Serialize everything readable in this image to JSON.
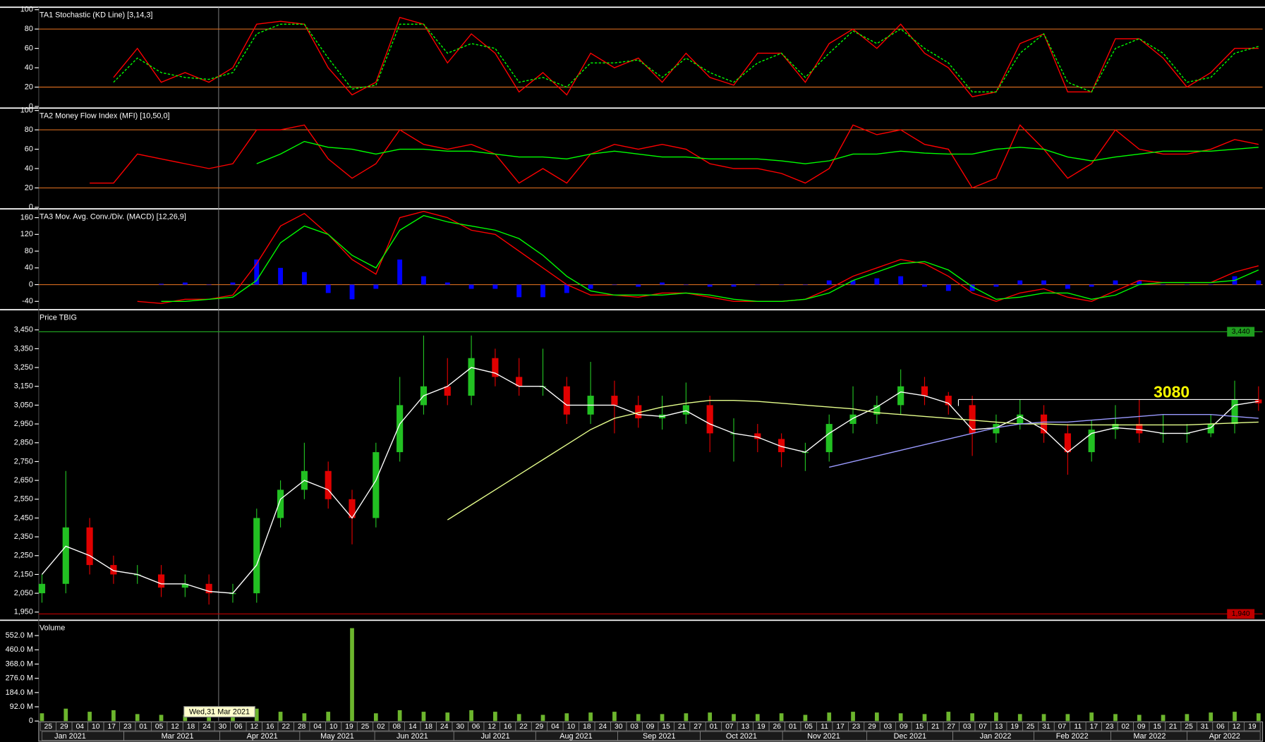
{
  "chart_data": [
    {
      "type": "line",
      "title": "TA1 Stochastic (KD Line) [3,14,3]",
      "ylim": [
        0,
        100
      ],
      "yticks": [
        0,
        20,
        40,
        60,
        80,
        100
      ],
      "guides": [
        80,
        20
      ],
      "guide_color": "#d2691e",
      "series": [
        {
          "color": "#ff0000",
          "values": [
            null,
            null,
            null,
            30,
            60,
            25,
            35,
            25,
            40,
            85,
            88,
            85,
            40,
            12,
            25,
            92,
            85,
            45,
            75,
            55,
            15,
            35,
            12,
            55,
            40,
            50,
            25,
            55,
            30,
            22,
            55,
            55,
            25,
            65,
            80,
            60,
            85,
            55,
            40,
            10,
            15,
            65,
            75,
            15,
            15,
            70,
            70,
            50,
            20,
            35,
            60,
            60
          ]
        },
        {
          "color": "#00ff00",
          "dash": true,
          "values": [
            null,
            null,
            null,
            25,
            50,
            35,
            30,
            28,
            35,
            75,
            85,
            85,
            50,
            18,
            22,
            85,
            85,
            55,
            65,
            60,
            25,
            30,
            20,
            45,
            45,
            48,
            30,
            50,
            35,
            25,
            45,
            55,
            30,
            55,
            78,
            65,
            80,
            60,
            45,
            15,
            15,
            55,
            75,
            25,
            15,
            60,
            70,
            55,
            25,
            30,
            55,
            62
          ]
        }
      ]
    },
    {
      "type": "line",
      "title": "TA2 Money Flow Index (MFI) [10,50,0]",
      "ylim": [
        0,
        100
      ],
      "yticks": [
        0,
        20,
        40,
        60,
        80,
        100
      ],
      "guides": [
        80,
        20
      ],
      "guide_color": "#d2691e",
      "series": [
        {
          "color": "#ff0000",
          "values": [
            null,
            null,
            25,
            25,
            55,
            50,
            45,
            40,
            45,
            80,
            80,
            85,
            50,
            30,
            45,
            80,
            65,
            60,
            65,
            55,
            25,
            40,
            25,
            55,
            65,
            60,
            65,
            60,
            45,
            40,
            40,
            35,
            25,
            40,
            85,
            75,
            80,
            65,
            60,
            20,
            30,
            85,
            60,
            30,
            45,
            80,
            60,
            55,
            55,
            60,
            70,
            65
          ]
        },
        {
          "color": "#00ff00",
          "values": [
            null,
            null,
            null,
            null,
            null,
            null,
            null,
            null,
            null,
            45,
            55,
            68,
            62,
            60,
            55,
            60,
            60,
            58,
            58,
            55,
            52,
            52,
            50,
            55,
            58,
            55,
            52,
            52,
            50,
            50,
            50,
            48,
            45,
            48,
            55,
            55,
            58,
            56,
            55,
            55,
            60,
            62,
            60,
            52,
            48,
            52,
            55,
            58,
            58,
            58,
            60,
            62
          ]
        }
      ]
    },
    {
      "type": "combo",
      "title": "TA3 Mov. Avg. Conv./Div. (MACD) [12,26,9]",
      "ylim": [
        -58,
        179
      ],
      "yticks": [
        -40,
        0,
        40,
        80,
        120,
        160
      ],
      "guides": [
        0
      ],
      "guide_color": "#d2691e",
      "series": [
        {
          "type": "bar",
          "color": "#0000ff",
          "values": [
            null,
            null,
            null,
            null,
            null,
            2,
            5,
            0,
            5,
            60,
            40,
            30,
            -20,
            -35,
            -10,
            60,
            20,
            5,
            -10,
            -10,
            -30,
            -30,
            -20,
            -10,
            0,
            -5,
            5,
            0,
            -5,
            -5,
            0,
            0,
            0,
            10,
            10,
            15,
            20,
            -5,
            -15,
            -15,
            -5,
            10,
            10,
            -10,
            -5,
            10,
            10,
            0,
            0,
            0,
            20,
            10
          ]
        },
        {
          "type": "line",
          "color": "#ff0000",
          "values": [
            null,
            null,
            null,
            null,
            -40,
            -45,
            -35,
            -35,
            -25,
            50,
            140,
            170,
            120,
            60,
            25,
            160,
            175,
            160,
            130,
            120,
            80,
            40,
            0,
            -25,
            -25,
            -30,
            -20,
            -20,
            -30,
            -40,
            -40,
            -40,
            -35,
            -10,
            20,
            40,
            60,
            50,
            20,
            -20,
            -40,
            -20,
            -10,
            -30,
            -40,
            -15,
            10,
            5,
            5,
            5,
            30,
            45
          ]
        },
        {
          "type": "line",
          "color": "#00ff00",
          "values": [
            null,
            null,
            null,
            null,
            null,
            -40,
            -40,
            -35,
            -30,
            10,
            100,
            140,
            120,
            70,
            40,
            130,
            165,
            150,
            140,
            130,
            110,
            70,
            20,
            -15,
            -25,
            -25,
            -25,
            -20,
            -25,
            -35,
            -40,
            -40,
            -35,
            -20,
            10,
            30,
            50,
            55,
            35,
            -5,
            -35,
            -30,
            -20,
            -20,
            -35,
            -25,
            0,
            5,
            5,
            5,
            10,
            35
          ]
        }
      ]
    },
    {
      "type": "candlestick",
      "title": "Price TBIG",
      "ylim": [
        1911,
        3553
      ],
      "yticks": [
        {
          "value": 1950,
          "label": "1,950"
        },
        {
          "value": 2050,
          "label": "2,050"
        },
        {
          "value": 2150,
          "label": "2,150"
        },
        {
          "value": 2250,
          "label": "2,250"
        },
        {
          "value": 2350,
          "label": "2,350"
        },
        {
          "value": 2450,
          "label": "2,450"
        },
        {
          "value": 2550,
          "label": "2,550"
        },
        {
          "value": 2650,
          "label": "2,650"
        },
        {
          "value": 2750,
          "label": "2,750"
        },
        {
          "value": 2850,
          "label": "2,850"
        },
        {
          "value": 2950,
          "label": "2,950"
        },
        {
          "value": 3050,
          "label": "3,050"
        },
        {
          "value": 3150,
          "label": "3,150"
        },
        {
          "value": 3250,
          "label": "3,250"
        },
        {
          "value": 3350,
          "label": "3,350"
        },
        {
          "value": 3450,
          "label": "3,450"
        }
      ],
      "up_color": "#22c022",
      "down_color": "#e00000",
      "open": [
        2050,
        2100,
        2400,
        2200,
        2150,
        2150,
        2080,
        2100,
        2050,
        2050,
        2450,
        2600,
        2700,
        2550,
        2450,
        2800,
        3050,
        3150,
        3100,
        3300,
        3200,
        3150,
        3150,
        3000,
        3100,
        3050,
        2980,
        3000,
        3050,
        2900,
        2900,
        2870,
        2800,
        2800,
        2950,
        3000,
        3050,
        3150,
        3100,
        3050,
        2900,
        2950,
        3000,
        2900,
        2800,
        2920,
        2950,
        2900,
        2900,
        2900,
        2950,
        3080
      ],
      "high": [
        2150,
        2700,
        2450,
        2250,
        2200,
        2200,
        2150,
        2150,
        2100,
        2500,
        2650,
        2850,
        2750,
        2600,
        2850,
        3200,
        3420,
        3300,
        3420,
        3350,
        3300,
        3350,
        3200,
        3280,
        3180,
        3100,
        3100,
        3170,
        3100,
        2980,
        2950,
        2900,
        2850,
        3000,
        3150,
        3100,
        3240,
        3200,
        3120,
        3100,
        3000,
        3080,
        3050,
        2950,
        2970,
        3050,
        3080,
        3000,
        2950,
        3000,
        3180,
        3150
      ],
      "low": [
        2000,
        2050,
        2150,
        2100,
        2100,
        2030,
        2030,
        1990,
        2000,
        2000,
        2400,
        2550,
        2500,
        2310,
        2400,
        2750,
        3000,
        3050,
        3050,
        3150,
        3100,
        3100,
        2950,
        2950,
        2900,
        2930,
        2920,
        2950,
        2800,
        2750,
        2800,
        2720,
        2700,
        2750,
        2900,
        2950,
        3000,
        3050,
        3000,
        2780,
        2850,
        2920,
        2850,
        2680,
        2750,
        2870,
        2850,
        2850,
        2850,
        2880,
        2900,
        3020
      ],
      "close": [
        2100,
        2400,
        2200,
        2150,
        2150,
        2080,
        2100,
        2050,
        2050,
        2450,
        2600,
        2700,
        2550,
        2450,
        2800,
        3050,
        3150,
        3100,
        3300,
        3200,
        3150,
        3150,
        3000,
        3100,
        3050,
        2980,
        3000,
        3050,
        2900,
        2900,
        2870,
        2800,
        2800,
        2950,
        3000,
        3050,
        3150,
        3100,
        3050,
        2900,
        2950,
        3000,
        2900,
        2800,
        2920,
        2950,
        2900,
        2900,
        2900,
        2950,
        3080,
        3060
      ],
      "overlays": [
        {
          "color": "#ffffff",
          "values": [
            2150,
            2300,
            2250,
            2170,
            2150,
            2100,
            2100,
            2060,
            2050,
            2200,
            2550,
            2650,
            2600,
            2450,
            2650,
            2950,
            3100,
            3150,
            3250,
            3220,
            3150,
            3150,
            3050,
            3050,
            3050,
            3000,
            2990,
            3020,
            2950,
            2900,
            2880,
            2830,
            2800,
            2900,
            2980,
            3040,
            3120,
            3100,
            3060,
            2920,
            2930,
            2990,
            2920,
            2800,
            2900,
            2930,
            2920,
            2900,
            2900,
            2930,
            3050,
            3070
          ]
        },
        {
          "color": "#e6ff8c",
          "values": [
            null,
            null,
            null,
            null,
            null,
            null,
            null,
            null,
            null,
            null,
            null,
            null,
            null,
            null,
            null,
            null,
            null,
            2440,
            2520,
            2600,
            2680,
            2760,
            2840,
            2920,
            2980,
            3010,
            3040,
            3060,
            3075,
            3075,
            3070,
            3060,
            3050,
            3040,
            3030,
            3010,
            3000,
            2990,
            2980,
            2970,
            2960,
            2950,
            2950,
            2945,
            2945,
            2945,
            2945,
            2945,
            2945,
            2950,
            2955,
            2960
          ]
        },
        {
          "color": "#9a9aff",
          "values": [
            null,
            null,
            null,
            null,
            null,
            null,
            null,
            null,
            null,
            null,
            null,
            null,
            null,
            null,
            null,
            null,
            null,
            null,
            null,
            null,
            null,
            null,
            null,
            null,
            null,
            null,
            null,
            null,
            null,
            null,
            null,
            null,
            null,
            2720,
            2750,
            2780,
            2810,
            2840,
            2870,
            2900,
            2930,
            2950,
            2960,
            2960,
            2970,
            2980,
            2990,
            3000,
            3000,
            3000,
            2990,
            2980
          ]
        }
      ],
      "reference_lines": [
        {
          "value": 3440,
          "label": "3,440",
          "color": "#1f9d1f"
        },
        {
          "value": 1940,
          "label": "1,940",
          "color": "#c00000"
        }
      ],
      "annotation": {
        "text": "3080",
        "value": 3080,
        "color": "#ffff00"
      }
    },
    {
      "type": "bar",
      "title": "Volume",
      "ylim": [
        0,
        646
      ],
      "color": "#6cb52d",
      "yticks": [
        0,
        {
          "value": 92,
          "label": "92.0 M"
        },
        {
          "value": 184,
          "label": "184.0 M"
        },
        {
          "value": 276,
          "label": "276.0 M"
        },
        {
          "value": 368,
          "label": "368.0 M"
        },
        {
          "value": 460,
          "label": "460.0 M"
        },
        {
          "value": 552,
          "label": "552.0 M"
        }
      ],
      "values": [
        50,
        80,
        60,
        70,
        45,
        40,
        40,
        35,
        40,
        80,
        60,
        50,
        60,
        600,
        50,
        70,
        60,
        55,
        70,
        60,
        45,
        40,
        50,
        55,
        60,
        45,
        45,
        50,
        55,
        45,
        45,
        50,
        40,
        55,
        60,
        55,
        50,
        45,
        60,
        50,
        55,
        45,
        45,
        45,
        55,
        45,
        40,
        40,
        45,
        55,
        60,
        50
      ]
    }
  ],
  "x_axis": {
    "day_labels": [
      "25",
      "29",
      "04",
      "10",
      "17",
      "23",
      "01",
      "05",
      "12",
      "18",
      "24",
      "30",
      "06",
      "12",
      "16",
      "22",
      "28",
      "04",
      "10",
      "19",
      "25",
      "02",
      "08",
      "14",
      "18",
      "24",
      "30",
      "06",
      "12",
      "16",
      "22",
      "29",
      "04",
      "10",
      "18",
      "24",
      "30",
      "03",
      "09",
      "15",
      "21",
      "27",
      "01",
      "07",
      "13",
      "19",
      "26",
      "01",
      "05",
      "11",
      "17",
      "23",
      "29",
      "03",
      "09",
      "15",
      "21",
      "27",
      "03",
      "07",
      "13",
      "19",
      "25",
      "31",
      "07",
      "11",
      "17",
      "23",
      "02",
      "09",
      "15",
      "21",
      "25",
      "31",
      "06",
      "12",
      "19"
    ],
    "months": [
      "Jan 2021",
      "Mar 2021",
      "Apr 2021",
      "May 2021",
      "Jun 2021",
      "Jul 2021",
      "Aug 2021",
      "Sep 2021",
      "Oct 2021",
      "Nov 2021",
      "Dec 2021",
      "Jan 2022",
      "Feb 2022",
      "Mar 2022",
      "Apr 2022"
    ]
  },
  "cursor": {
    "label": "Wed,31 Mar 2021"
  }
}
